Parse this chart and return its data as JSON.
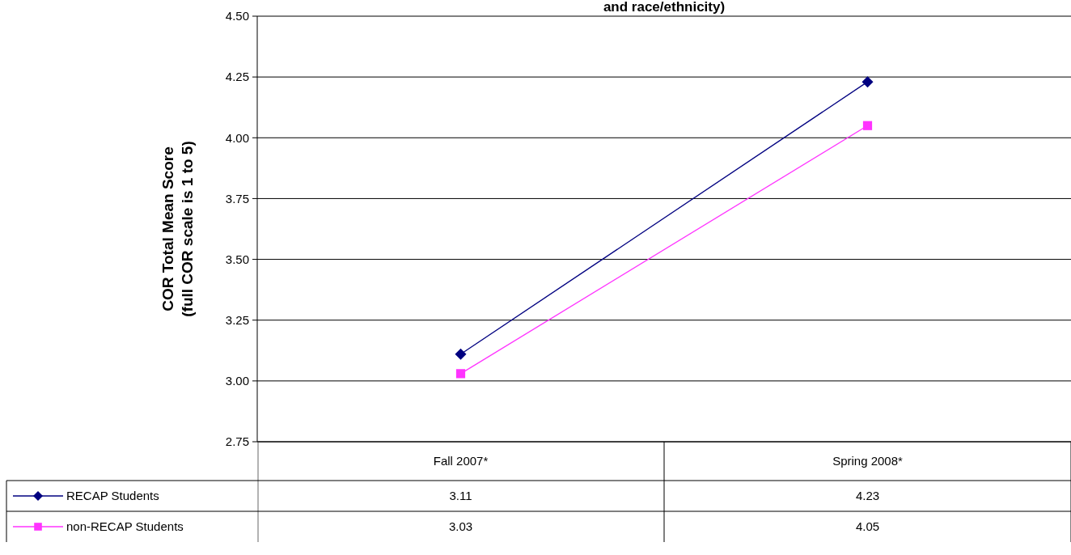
{
  "chart_data": {
    "type": "line",
    "title": "and race/ethnicity)",
    "ylabel": "COR Total Mean Score\n(full COR scale is 1 to 5)",
    "categories": [
      "Fall 2007*",
      "Spring 2008*"
    ],
    "series": [
      {
        "name": "RECAP Students",
        "color": "#000080",
        "values": [
          3.11,
          4.23
        ],
        "marker": "diamond"
      },
      {
        "name": "non-RECAP Students",
        "color": "#ff33ff",
        "values": [
          3.03,
          4.05
        ],
        "marker": "square"
      }
    ],
    "ylim": [
      2.75,
      4.5
    ],
    "yticks": [
      {
        "value": 2.75,
        "label": "2.75"
      },
      {
        "value": 3,
        "label": "3.00"
      },
      {
        "value": 3.25,
        "label": "3.25"
      },
      {
        "value": 3.5,
        "label": "3.50"
      },
      {
        "value": 3.75,
        "label": "3.75"
      },
      {
        "value": 4,
        "label": "4.00"
      },
      {
        "value": 4.25,
        "label": "4.25"
      },
      {
        "value": 4.5,
        "label": "4.50"
      }
    ],
    "grid": "y",
    "legend": "bottom left",
    "data_labels": true
  }
}
